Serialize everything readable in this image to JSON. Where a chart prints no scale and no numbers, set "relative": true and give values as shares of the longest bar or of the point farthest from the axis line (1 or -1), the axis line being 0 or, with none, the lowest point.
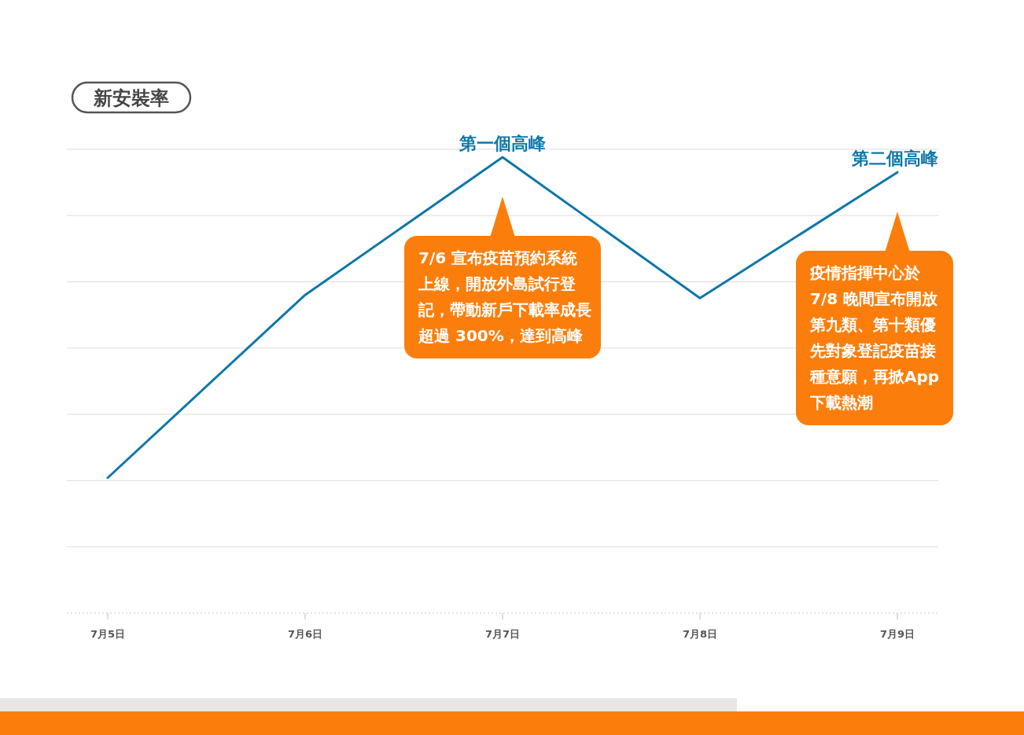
{
  "chart_data": {
    "type": "line",
    "title": "新安裝率",
    "categories": [
      "7月5日",
      "7月6日",
      "7月7日",
      "7月8日",
      "7月9日"
    ],
    "relative": true,
    "grid": "y",
    "marker": "none",
    "line_style": "solid",
    "series": [
      {
        "color": "#0e77a8",
        "values": [
          0.297,
          0.698,
          1,
          0.691,
          0.967
        ]
      }
    ],
    "annotations": [
      {
        "text": "第一個高峰",
        "x": "7月7日",
        "y": 1
      },
      {
        "text": "第二個高峰",
        "x": "7月9日",
        "y": 0.967
      },
      "7/6 宣布疫苗預約系統上線，開放外島試行登記，帶動新戶下載率成長超過 300%，達到高峰",
      "疫情指揮中心於 7/8 晚間宣布開放第九類、第十類優先對象登記疫苗接種意願，再掀App下載熱潮"
    ]
  }
}
